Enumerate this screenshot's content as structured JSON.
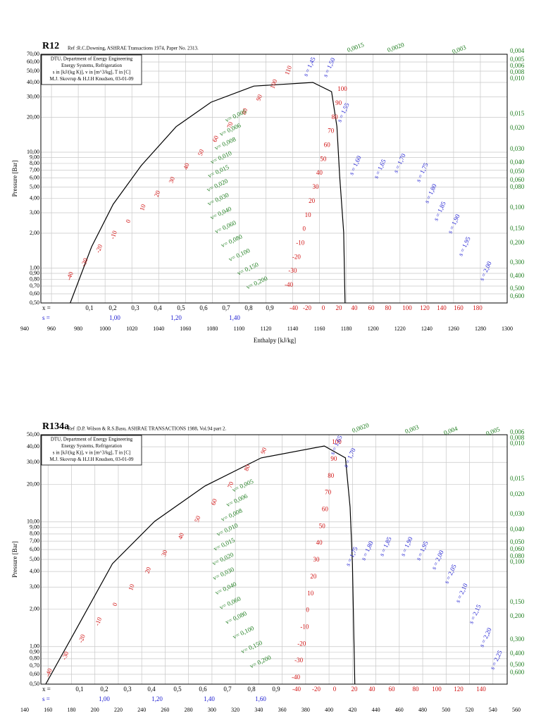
{
  "chart_data": [
    {
      "type": "line",
      "title": "R12",
      "reference": "Ref :R.C.Downing, ASHRAE Transactions 1974, Paper No. 2313.",
      "info": [
        "DTU, Department of Energy Engineering",
        "Energy Systems, Refrigeration",
        "s in [kJ/(kg K)], v in [m^3/kg], T in [C]",
        "M.J. Skovrup & H.J.H Knudsen, 03-01-09"
      ],
      "xlabel": "Enthalpy [kJ/kg]",
      "ylabel": "Pressure [Bar]",
      "yscale": "log",
      "grid": true,
      "xlim": [
        940,
        1300
      ],
      "ylim": [
        0.5,
        70
      ],
      "xticks": [
        940,
        960,
        980,
        1000,
        1020,
        1040,
        1060,
        1080,
        1100,
        1120,
        1140,
        1160,
        1180,
        1200,
        1220,
        1240,
        1260,
        1280,
        1300
      ],
      "yticks": [
        {
          "value": 70,
          "label": "70,00"
        },
        {
          "value": 60,
          "label": "60,00"
        },
        {
          "value": 50,
          "label": "50,00"
        },
        {
          "value": 40,
          "label": "40,00"
        },
        {
          "value": 30,
          "label": "30,00"
        },
        {
          "value": 20,
          "label": "20,00"
        },
        {
          "value": 10,
          "label": "10,00"
        },
        {
          "value": 9,
          "label": "9,00"
        },
        {
          "value": 8,
          "label": "8,00"
        },
        {
          "value": 7,
          "label": "7,00"
        },
        {
          "value": 6,
          "label": "6,00"
        },
        {
          "value": 5,
          "label": "5,00"
        },
        {
          "value": 4,
          "label": "4,00"
        },
        {
          "value": 3,
          "label": "3,00"
        },
        {
          "value": 2,
          "label": "2,00"
        },
        {
          "value": 1,
          "label": "1,00"
        },
        {
          "value": 0.9,
          "label": "0,90"
        },
        {
          "value": 0.8,
          "label": "0,80"
        },
        {
          "value": 0.7,
          "label": "0,70"
        },
        {
          "value": 0.6,
          "label": "0,60"
        },
        {
          "value": 0.5,
          "label": "0,50"
        }
      ],
      "series": [
        {
          "name": "saturation",
          "color": "#000000",
          "x": [
            974,
            990,
            1006,
            1027,
            1053,
            1079,
            1111,
            1155,
            1169,
            1173,
            1175,
            1178,
            1179
          ],
          "values": [
            0.5,
            1.53,
            3.55,
            7.66,
            16.6,
            27,
            37.2,
            40,
            33.3,
            16.6,
            6.2,
            2.03,
            0.5
          ]
        }
      ],
      "quality_prefix": "x =",
      "quality_labels": [
        "0,1",
        "0,2",
        "0,3",
        "0,4",
        "0,5",
        "0,6",
        "0,7",
        "0,8",
        "0,9"
      ],
      "entropy_prefix": "s =",
      "entropy_axis_labels": [
        "1,00",
        "1,20",
        "1,40"
      ],
      "temperature_axis_labels": [
        "-40",
        "-20",
        "0",
        "20",
        "40",
        "60",
        "80",
        "100",
        "120",
        "140",
        "160",
        "180"
      ],
      "isotherm_left_labels": [
        "-40",
        "-30",
        "-20",
        "-10",
        "0",
        "10",
        "20",
        "30",
        "40",
        "50",
        "60",
        "70",
        "80",
        "90",
        "100",
        "110"
      ],
      "isotherm_right_labels": [
        "100",
        "90",
        "80",
        "70",
        "60",
        "50",
        "40",
        "30",
        "20",
        "10",
        "0",
        "-10",
        "-20",
        "-30",
        "-40"
      ],
      "volume_top_labels": [
        "0,0015",
        "0,0020",
        "0,003"
      ],
      "volume_right_labels": [
        "0,004",
        "0,005",
        "0,006",
        "0,008",
        "0,010",
        "0,015",
        "0,020",
        "0,030",
        "0,040",
        "0,050",
        "0,060",
        "0,080",
        "0,100",
        "0,150",
        "0,200",
        "0,300",
        "0,400",
        "0,500",
        "0,600"
      ],
      "volume_inner_labels": [
        "v= 0,005",
        "v= 0,006",
        "v= 0,008",
        "v= 0,010",
        "v= 0,015",
        "v= 0,020",
        "v= 0,030",
        "v= 0,040",
        "v= 0,060",
        "v= 0,080",
        "v= 0,100",
        "v= 0,150",
        "v= 0,200"
      ],
      "entropy_labels": [
        "s = 1,45",
        "s = 1,50",
        "s = 1,55",
        "s = 1,60",
        "s = 1,65",
        "s = 1,70",
        "s = 1,75",
        "s = 1,80",
        "s = 1,85",
        "s = 1,90",
        "s = 1,95",
        "s = 2,00"
      ]
    },
    {
      "type": "line",
      "title": "R134a",
      "reference": "Ref :D.P. Wilson & R.S.Basu, ASHRAE TRANSACTIONS 1988, Vol.94 part 2.",
      "info": [
        "DTU, Department of Energy Engineering",
        "Energy Systems, Refrigeration",
        "s in [kJ/(kg K)], v in [m^3/kg], T in [C]",
        "M.J. Skovrup & H.J.H Knudsen, 03-01-09"
      ],
      "ylabel": "Pressure [Bar]",
      "yscale": "log",
      "grid": true,
      "xlim": [
        140,
        560
      ],
      "ylim": [
        0.5,
        50
      ],
      "xticks": [
        140,
        160,
        180,
        200,
        220,
        240,
        260,
        280,
        300,
        320,
        340,
        360,
        380,
        400,
        420,
        440,
        460,
        480,
        500,
        520,
        540,
        560
      ],
      "yticks": [
        {
          "value": 50,
          "label": "50,00"
        },
        {
          "value": 40,
          "label": "40,00"
        },
        {
          "value": 30,
          "label": "30,00"
        },
        {
          "value": 20,
          "label": "20,00"
        },
        {
          "value": 10,
          "label": "10,00"
        },
        {
          "value": 9,
          "label": "9,00"
        },
        {
          "value": 8,
          "label": "8,00"
        },
        {
          "value": 7,
          "label": "7,00"
        },
        {
          "value": 6,
          "label": "6,00"
        },
        {
          "value": 5,
          "label": "5,00"
        },
        {
          "value": 4,
          "label": "4,00"
        },
        {
          "value": 3,
          "label": "3,00"
        },
        {
          "value": 2,
          "label": "2,00"
        },
        {
          "value": 1,
          "label": "1,00"
        },
        {
          "value": 0.9,
          "label": "0,90"
        },
        {
          "value": 0.8,
          "label": "0,80"
        },
        {
          "value": 0.7,
          "label": "0,70"
        },
        {
          "value": 0.6,
          "label": "0,60"
        },
        {
          "value": 0.5,
          "label": "0,50"
        }
      ],
      "series": [
        {
          "name": "saturation",
          "color": "#000000",
          "x": [
            158,
            185,
            215,
            251,
            294,
            342,
            396,
            414,
            418,
            420,
            422
          ],
          "values": [
            0.5,
            1.43,
            4.62,
            10.1,
            19.4,
            32.6,
            40.6,
            32.6,
            13.1,
            4.62,
            0.5
          ]
        }
      ],
      "quality_prefix": "x =",
      "quality_labels": [
        "0,1",
        "0,2",
        "0,3",
        "0,4",
        "0,5",
        "0,6",
        "0,7",
        "0,8",
        "0,9"
      ],
      "entropy_prefix": "s =",
      "entropy_axis_labels": [
        "1,00",
        "1,20",
        "1,40",
        "1,60"
      ],
      "temperature_axis_labels": [
        "-40",
        "-20",
        "0",
        "20",
        "40",
        "60",
        "80",
        "100",
        "120",
        "140"
      ],
      "isotherm_left_labels": [
        "-40",
        "-30",
        "-20",
        "-10",
        "0",
        "10",
        "20",
        "30",
        "40",
        "50",
        "60",
        "70",
        "80",
        "90"
      ],
      "isotherm_right_labels": [
        "100",
        "90",
        "80",
        "70",
        "60",
        "50",
        "40",
        "30",
        "20",
        "10",
        "0",
        "-10",
        "-20",
        "-30",
        "-40"
      ],
      "volume_top_labels": [
        "0,0020",
        "0,003",
        "0,004",
        "0,005"
      ],
      "volume_right_labels": [
        "0,006",
        "0,008",
        "0,010",
        "0,015",
        "0,020",
        "0,030",
        "0,040",
        "0,050",
        "0,060",
        "0,080",
        "0,100",
        "0,150",
        "0,200",
        "0,300",
        "0,400",
        "0,500",
        "0,600"
      ],
      "volume_inner_labels": [
        "v= 0,005",
        "v= 0,006",
        "v= 0,008",
        "v= 0,010",
        "v= 0,015",
        "v= 0,020",
        "v= 0,030",
        "v= 0,040",
        "v= 0,060",
        "v= 0,080",
        "v= 0,100",
        "v= 0,150",
        "v= 0,200"
      ],
      "entropy_labels": [
        "s = 1,65",
        "s = 1,70",
        "s = 1,75",
        "s = 1,80",
        "s = 1,85",
        "s = 1,90",
        "s = 1,95",
        "s = 2,00",
        "s = 2,05",
        "s = 2,10",
        "s = 2,15",
        "s = 2,20",
        "s = 2,25"
      ]
    }
  ]
}
